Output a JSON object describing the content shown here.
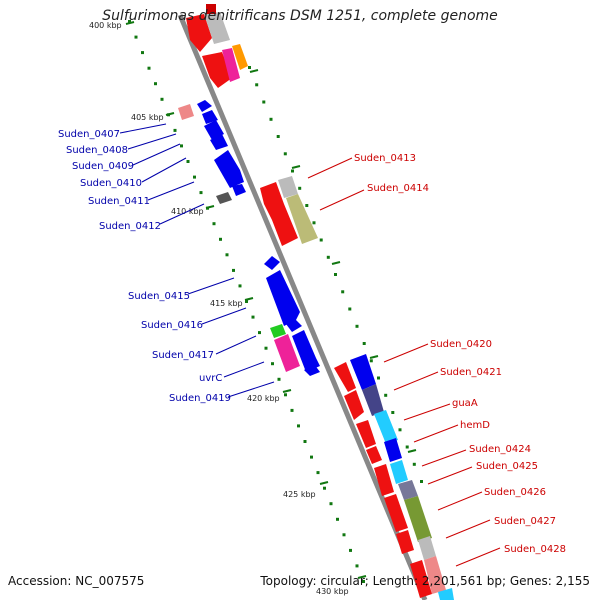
{
  "title": "Sulfurimonas denitrificans DSM 1251, complete genome",
  "footer": {
    "accession": "Accession: NC_007575",
    "summary": "Topology: circular; Length: 2,201,561 bp; Genes: 2,155"
  },
  "colors": {
    "left_labels": "#0000aa",
    "right_labels": "#cc0000",
    "backbone": "#888888",
    "tick": "#117711"
  },
  "ticks": [
    {
      "label": "400 kbp"
    },
    {
      "label": "405 kbp"
    },
    {
      "label": "410 kbp"
    },
    {
      "label": "415 kbp"
    },
    {
      "label": "420 kbp"
    },
    {
      "label": "425 kbp"
    },
    {
      "label": "430 kbp"
    }
  ],
  "left_genes": [
    {
      "label": "Suden_0407"
    },
    {
      "label": "Suden_0408"
    },
    {
      "label": "Suden_0409"
    },
    {
      "label": "Suden_0410"
    },
    {
      "label": "Suden_0411"
    },
    {
      "label": "Suden_0412"
    },
    {
      "label": "Suden_0415"
    },
    {
      "label": "Suden_0416"
    },
    {
      "label": "Suden_0417"
    },
    {
      "label": "uvrC"
    },
    {
      "label": "Suden_0419"
    }
  ],
  "right_genes": [
    {
      "label": "Suden_0413"
    },
    {
      "label": "Suden_0414"
    },
    {
      "label": "Suden_0420"
    },
    {
      "label": "Suden_0421"
    },
    {
      "label": "guaA"
    },
    {
      "label": "hemD"
    },
    {
      "label": "Suden_0424"
    },
    {
      "label": "Suden_0425"
    },
    {
      "label": "Suden_0426"
    },
    {
      "label": "Suden_0427"
    },
    {
      "label": "Suden_0428"
    }
  ]
}
